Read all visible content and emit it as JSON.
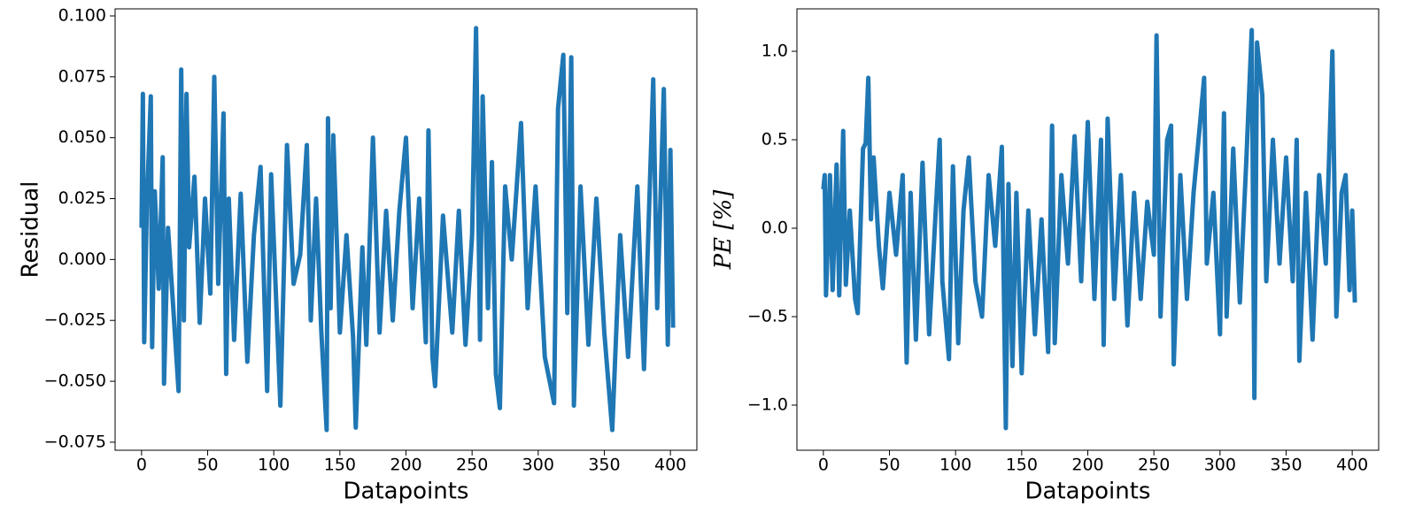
{
  "chart_data": [
    {
      "type": "line",
      "xlabel": "Datapoints",
      "ylabel": "Residual",
      "color": "#1f77b4",
      "x": [
        0,
        1,
        2,
        4,
        7,
        8,
        10,
        13,
        16,
        17,
        20,
        24,
        28,
        30,
        32,
        34,
        36,
        40,
        44,
        48,
        52,
        55,
        58,
        62,
        64,
        66,
        70,
        75,
        80,
        85,
        90,
        95,
        98,
        105,
        108,
        110,
        115,
        120,
        125,
        128,
        132,
        136,
        140,
        141,
        143,
        145,
        150,
        155,
        160,
        162,
        167,
        170,
        175,
        180,
        185,
        190,
        195,
        200,
        205,
        210,
        215,
        217,
        220,
        222,
        228,
        235,
        240,
        245,
        250,
        253,
        256,
        258,
        262,
        265,
        268,
        271,
        275,
        280,
        287,
        292,
        298,
        305,
        312,
        315,
        319,
        322,
        325,
        327,
        332,
        338,
        344,
        350,
        356,
        362,
        368,
        375,
        380,
        387,
        390,
        395,
        398,
        400,
        402
      ],
      "values": [
        0.013,
        0.068,
        -0.034,
        0.022,
        0.067,
        -0.036,
        0.028,
        -0.012,
        0.042,
        -0.051,
        0.013,
        -0.02,
        -0.054,
        0.078,
        -0.025,
        0.068,
        0.005,
        0.034,
        -0.026,
        0.025,
        -0.014,
        0.075,
        -0.01,
        0.06,
        -0.047,
        0.025,
        -0.033,
        0.027,
        -0.042,
        0.01,
        0.038,
        -0.054,
        0.035,
        -0.06,
        0.003,
        0.047,
        -0.01,
        0.002,
        0.047,
        -0.025,
        0.025,
        -0.03,
        -0.07,
        0.058,
        -0.02,
        0.051,
        -0.03,
        0.01,
        -0.032,
        -0.069,
        0.005,
        -0.035,
        0.05,
        -0.03,
        0.02,
        -0.025,
        0.02,
        0.05,
        -0.02,
        0.025,
        -0.034,
        0.053,
        -0.04,
        -0.052,
        0.018,
        -0.03,
        0.02,
        -0.035,
        0.01,
        0.095,
        -0.033,
        0.067,
        -0.02,
        0.04,
        -0.047,
        -0.061,
        0.03,
        0.0,
        0.056,
        -0.02,
        0.03,
        -0.04,
        -0.059,
        0.062,
        0.084,
        -0.022,
        0.083,
        -0.06,
        0.03,
        -0.035,
        0.025,
        -0.03,
        -0.07,
        0.01,
        -0.04,
        0.03,
        -0.045,
        0.074,
        -0.02,
        0.07,
        -0.035,
        0.045,
        -0.028
      ],
      "xlim": [
        -20,
        420
      ],
      "xticks": [
        0,
        50,
        100,
        150,
        200,
        250,
        300,
        350,
        400
      ],
      "ylim": [
        -0.0783,
        0.1029
      ],
      "yticks": [
        {
          "value": -0.075,
          "label": "−0.075"
        },
        {
          "value": -0.05,
          "label": "−0.050"
        },
        {
          "value": -0.025,
          "label": "−0.025"
        },
        {
          "value": 0,
          "label": "0.000"
        },
        0.025,
        {
          "value": 0.05,
          "label": "0.050"
        },
        0.075,
        {
          "value": 0.1,
          "label": "0.100"
        }
      ]
    },
    {
      "type": "line",
      "xlabel": "Datapoints",
      "ylabel": "PE [%]",
      "color": "#1f77b4",
      "x": [
        0,
        1,
        2,
        5,
        7,
        10,
        12,
        15,
        17,
        20,
        24,
        26,
        30,
        32,
        34,
        36,
        38,
        42,
        45,
        50,
        55,
        60,
        63,
        66,
        70,
        75,
        80,
        85,
        88,
        90,
        95,
        98,
        102,
        106,
        110,
        115,
        120,
        125,
        130,
        135,
        138,
        140,
        143,
        146,
        150,
        155,
        160,
        165,
        170,
        173,
        175,
        180,
        185,
        190,
        195,
        200,
        205,
        210,
        212,
        215,
        220,
        225,
        230,
        235,
        240,
        245,
        250,
        252,
        255,
        260,
        263,
        265,
        270,
        275,
        280,
        285,
        288,
        290,
        295,
        300,
        303,
        305,
        310,
        315,
        320,
        324,
        326,
        328,
        332,
        335,
        340,
        345,
        350,
        355,
        358,
        360,
        365,
        370,
        375,
        380,
        385,
        388,
        392,
        395,
        398,
        400,
        402
      ],
      "values": [
        0.22,
        0.3,
        -0.38,
        0.3,
        -0.35,
        0.36,
        -0.38,
        0.55,
        -0.32,
        0.1,
        -0.4,
        -0.48,
        0.45,
        0.48,
        0.85,
        0.05,
        0.4,
        -0.1,
        -0.34,
        0.2,
        -0.15,
        0.3,
        -0.76,
        0.2,
        -0.63,
        0.37,
        -0.6,
        0.1,
        0.5,
        -0.3,
        -0.74,
        0.35,
        -0.65,
        0.1,
        0.4,
        -0.3,
        -0.5,
        0.3,
        -0.1,
        0.46,
        -1.13,
        0.25,
        -0.78,
        0.2,
        -0.82,
        0.1,
        -0.6,
        0.05,
        -0.7,
        0.58,
        -0.65,
        0.3,
        -0.2,
        0.52,
        -0.3,
        0.6,
        -0.4,
        0.5,
        -0.66,
        0.62,
        -0.4,
        0.3,
        -0.55,
        0.2,
        -0.4,
        0.15,
        -0.15,
        1.09,
        -0.5,
        0.5,
        0.58,
        -0.77,
        0.3,
        -0.4,
        0.2,
        0.6,
        0.85,
        -0.2,
        0.2,
        -0.6,
        0.65,
        -0.5,
        0.45,
        -0.42,
        0.4,
        1.12,
        -0.96,
        1.05,
        0.75,
        -0.3,
        0.5,
        -0.2,
        0.4,
        -0.3,
        0.5,
        -0.75,
        0.2,
        -0.63,
        0.3,
        -0.2,
        1.0,
        -0.5,
        0.2,
        0.3,
        -0.35,
        0.1,
        -0.42
      ],
      "xlim": [
        -20,
        420
      ],
      "xticks": [
        0,
        50,
        100,
        150,
        200,
        250,
        300,
        350,
        400
      ],
      "ylim": [
        -1.255,
        1.24
      ],
      "yticks": [
        {
          "value": -1,
          "label": "−1.0"
        },
        {
          "value": -0.5,
          "label": "−0.5"
        },
        {
          "value": 0,
          "label": "0.0"
        },
        0.5,
        {
          "value": 1,
          "label": "1.0"
        }
      ]
    }
  ]
}
